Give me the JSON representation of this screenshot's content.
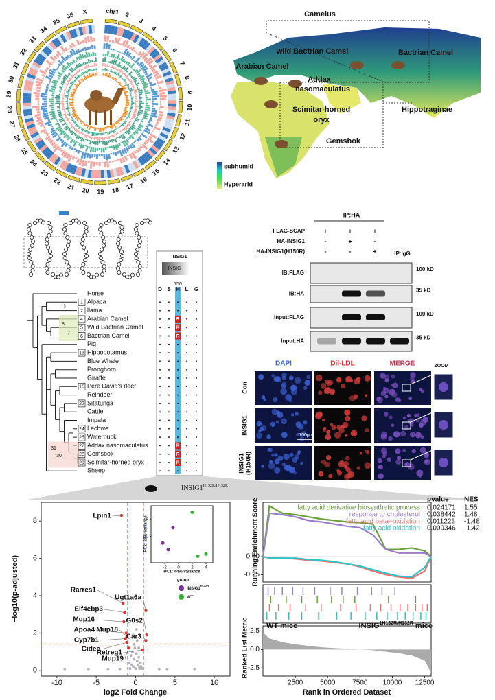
{
  "circos": {
    "labels": [
      "chr1",
      "2",
      "3",
      "4",
      "5",
      "6",
      "7",
      "8",
      "9",
      "10",
      "11",
      "12",
      "13",
      "14",
      "15",
      "16",
      "17",
      "18",
      "19",
      "20",
      "21",
      "22",
      "23",
      "24",
      "25",
      "26",
      "27",
      "28",
      "29",
      "30",
      "31",
      "32",
      "33",
      "34",
      "35",
      "36",
      "X"
    ]
  },
  "map": {
    "labels": [
      "Camelus",
      "wild Bactrian Camel",
      "Bactrian Camel",
      "Arabian Camel",
      "Addax",
      "nasomaculatus",
      "Scimitar-horned",
      "oryx",
      "Hippotraginae",
      "Gemsbok"
    ],
    "legend": [
      "subhumid",
      "Hyperarid"
    ]
  },
  "tree": {
    "species": [
      "Horse",
      "Alpaca",
      "llama",
      "Arabian Camel",
      "Wild Bactrian Camel",
      "Bactrian Camel",
      "Pig",
      "Hippopotamus",
      "Blue Whale",
      "Pronghorn",
      "Giraffe",
      "Pere David's deer",
      "Reindeer",
      "Sitatunga",
      "Cattle",
      "Impala",
      "Lechwe",
      "Waterbuck",
      "Addax nasomaculatus",
      "Gemsbok",
      "Scimitar-horned oryx",
      "Sheep"
    ],
    "badges": [
      null,
      "1",
      "2",
      "4",
      "5",
      "6",
      null,
      "13",
      null,
      null,
      null,
      "16",
      null,
      "22",
      null,
      null,
      "24",
      "25",
      "27",
      "28",
      "29",
      null
    ],
    "internal_nodes": [
      "3",
      "7",
      "8",
      "30",
      "31"
    ]
  },
  "alignment": {
    "gene": "INSIG1",
    "label": "INSIG",
    "position": "150",
    "columns": [
      "D",
      "S",
      "H",
      "L",
      "G"
    ],
    "h_column": [
      null,
      null,
      null,
      "R",
      "R",
      "R",
      null,
      null,
      null,
      null,
      null,
      null,
      null,
      null,
      null,
      null,
      null,
      null,
      "R",
      "R",
      "R",
      null
    ]
  },
  "western": {
    "title": "IP:HA",
    "conditions": [
      "FLAG-SCAP",
      "HA-INSIG1",
      "HA-INSIG1(H150R)"
    ],
    "signs": [
      [
        "+",
        "+",
        "+"
      ],
      [
        "-",
        "+",
        "-"
      ],
      [
        "-",
        "-",
        "+"
      ]
    ],
    "igg": "IP:IgG",
    "rows": [
      {
        "label": "IB:FLAG",
        "size": "100 kD"
      },
      {
        "label": "IB:HA",
        "size": "35 kD"
      },
      {
        "label": "Input:FLAG",
        "size": "100 kD"
      },
      {
        "label": "Input:HA",
        "size": "35 kD"
      }
    ]
  },
  "microscopy": {
    "columns": [
      "DAPI",
      "Dil-LDL",
      "MERGE"
    ],
    "rows": [
      [
        "Con"
      ],
      [
        "INSIG1"
      ],
      [
        "INSIG1",
        "(H150R)"
      ]
    ],
    "zoom": "ZOOM",
    "scale": "100μm"
  },
  "mouse_label": {
    "gene": "INSIG1",
    "genotype": "H132R/H132R"
  },
  "volcano": {
    "type": "scatter",
    "xlabel": "log2 Fold Change",
    "ylabel": "−log10(p-adjusted)",
    "xlim": [
      -12,
      12
    ],
    "ylim": [
      -0.3,
      9
    ],
    "xticks": [
      -10,
      -5,
      0,
      5,
      10
    ],
    "yticks": [
      0,
      2,
      4,
      6,
      8
    ],
    "thresholds": {
      "x": [
        -1,
        1
      ],
      "y": 1.3
    },
    "genes": {
      "color": "#e8332a",
      "labels": [
        "Lpin1",
        "Rarres1",
        "Eif4ebp3",
        "Ugt1a6a",
        "Mup16",
        "G0s2",
        "Apoa4",
        "Mup18",
        "Cyp7b1",
        "Car3",
        "Cidec",
        "Retreg1",
        "Mup19"
      ],
      "x": [
        -1.8,
        -1.6,
        -1.4,
        1.3,
        -1.5,
        1.4,
        -1.2,
        -1.1,
        -1.3,
        1.3,
        -1.1,
        0.9,
        -0.9
      ],
      "y": [
        8.3,
        3.6,
        3.1,
        3.2,
        2.6,
        1.9,
        2.0,
        1.8,
        1.7,
        1.6,
        1.5,
        1.1,
        1.2
      ]
    },
    "background": {
      "color": "#b5b5b5",
      "x": [
        -0.8,
        -0.6,
        -0.4,
        -0.3,
        -0.2,
        -0.1,
        0,
        0.1,
        0.2,
        0.3,
        0.4,
        0.5,
        0.6,
        0.8,
        -0.5,
        0.2,
        -0.2,
        0.4,
        -0.7,
        0.7,
        -3.5,
        -6,
        4,
        7.5,
        -9,
        0.1,
        -0.3,
        0.5,
        3,
        -2
      ],
      "y": [
        0.4,
        0.8,
        1.0,
        0.2,
        0.6,
        1.2,
        0.1,
        0.9,
        0.5,
        0.3,
        0.7,
        0.2,
        0.4,
        0.1,
        0.3,
        1.6,
        1.4,
        1.2,
        0.1,
        0.2,
        0.05,
        0.05,
        0.05,
        0.05,
        0.05,
        2.2,
        1.9,
        0.1,
        0.05,
        0.05
      ]
    },
    "inset": {
      "xlabel": "PC1: 44% variance",
      "ylabel": "PC2: 28% variance",
      "xlim": [
        -4,
        5
      ],
      "ylim": [
        -6,
        7
      ],
      "xticks": [
        -2,
        0,
        2,
        4
      ],
      "yticks": [
        0,
        4
      ],
      "legend_title": "group",
      "series": [
        {
          "name": "INSIG1",
          "name_sup": "H132R",
          "color": "#7b3294",
          "x": [
            -2.3,
            -1.5,
            -0.8
          ],
          "y": [
            -1.5,
            -3.0,
            2.0
          ]
        },
        {
          "name": "WT",
          "color": "#33b233",
          "x": [
            2.0,
            2.8,
            4.0
          ],
          "y": [
            5.5,
            -4.5,
            -4.0
          ]
        }
      ]
    }
  },
  "gsea": {
    "type": "line",
    "ylabel": "Running Enrichment Score",
    "metric_label": "Ranked List Metric",
    "xlabel": "Rank in Ordered Dataset",
    "left_label": "WT mice",
    "right_label": {
      "gene": "INSIG",
      "sup": "1H132R/H132R",
      "rest": "mice"
    },
    "xlim": [
      0,
      13000
    ],
    "xticks": [
      2500,
      5000,
      7500,
      10000,
      12500
    ],
    "ylim": [
      -0.35,
      0.75
    ],
    "yticks": [
      {
        "value": 0,
        "label": "0.00"
      },
      -0.25
    ],
    "metric_ylim": [
      -3.6,
      3.2
    ],
    "metric_yticks": [
      2.5,
      {
        "value": 0,
        "label": "0.0"
      },
      -2.5
    ],
    "x": [
      0,
      500,
      1500,
      2500,
      3500,
      4500,
      5500,
      6500,
      7500,
      8500,
      9500,
      10500,
      11500,
      12500,
      13000
    ],
    "series": [
      {
        "name": "fatty acid derivative biosynthetic process",
        "color": "#6aa13a",
        "values": [
          0,
          0.7,
          0.6,
          0.58,
          0.55,
          0.52,
          0.5,
          0.48,
          0.47,
          0.45,
          0.1,
          0.1,
          0.12,
          0.08,
          0
        ],
        "hits": [
          600,
          1800,
          3000,
          4200,
          5300,
          6200,
          7100,
          9700,
          11800
        ]
      },
      {
        "name": "response to cholesterol",
        "color": "#9a7fc8",
        "values": [
          0,
          0.6,
          0.58,
          0.55,
          0.5,
          0.48,
          0.45,
          0.42,
          0.4,
          0.3,
          0.1,
          0.05,
          0.05,
          0.05,
          0
        ],
        "hits": [
          400,
          900,
          1500,
          2300,
          3100,
          4000,
          5200,
          6100,
          7300,
          8400,
          9200,
          10200
        ]
      },
      {
        "name": "fatty acid beta−oxidation",
        "color": "#f07070",
        "values": [
          0,
          -0.02,
          -0.02,
          -0.03,
          -0.05,
          -0.06,
          -0.08,
          -0.1,
          -0.14,
          -0.2,
          -0.25,
          -0.28,
          -0.3,
          -0.2,
          0
        ],
        "hits": [
          500,
          1200,
          2100,
          3300,
          4500,
          6000,
          7200,
          8300,
          9100,
          9900,
          10600,
          11200,
          11800,
          12300,
          12700
        ]
      },
      {
        "name": "fatty acid oxidation",
        "color": "#2ec4c4",
        "values": [
          0,
          -0.02,
          -0.02,
          -0.02,
          -0.04,
          -0.05,
          -0.07,
          -0.1,
          -0.13,
          -0.18,
          -0.23,
          -0.27,
          -0.28,
          -0.15,
          0
        ],
        "hits": [
          300,
          1000,
          2000,
          3000,
          4300,
          5700,
          6800,
          7900,
          8800,
          9600,
          10400,
          11000,
          11600,
          12200,
          12600
        ]
      }
    ],
    "metric": [
      2.3,
      1.5,
      1.0,
      0.7,
      0.5,
      0.3,
      0.2,
      0.1,
      0,
      -0.1,
      -0.3,
      -0.5,
      -0.8,
      -1.5,
      -3.2
    ],
    "stats": {
      "headers": [
        "pvalue",
        "NES"
      ],
      "rows": [
        [
          "0.024171",
          "1.55"
        ],
        [
          "0.038442",
          "1.48"
        ],
        [
          "0.011223",
          "-1.48"
        ],
        [
          "0.009346",
          "-1.42"
        ]
      ]
    }
  }
}
